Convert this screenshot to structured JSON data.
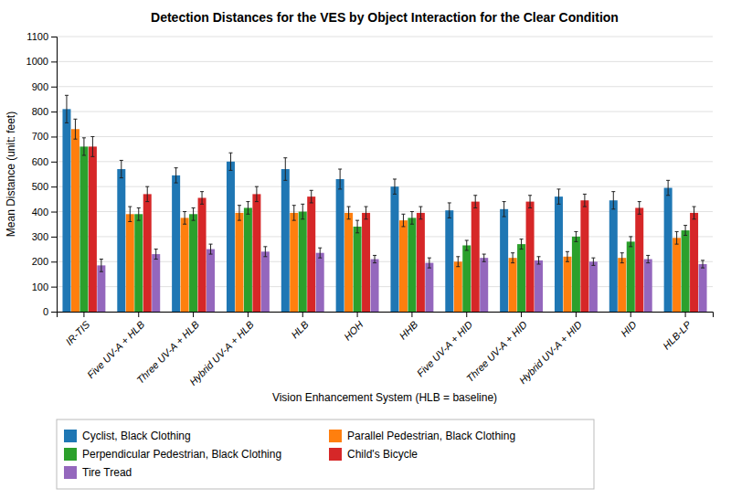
{
  "chart_data": {
    "type": "bar",
    "title": "Detection Distances for the VES by Object Interaction for the Clear Condition",
    "x_label": "Vision Enhancement System (HLB = baseline)",
    "y_label": "Mean Distance (unit: feet)",
    "categories": [
      "IR-TIS",
      "Five UV-A + HLB",
      "Three UV-A + HLB",
      "Hybrid UV-A + HLB",
      "HLB",
      "HOH",
      "HHB",
      "Five UV-A + HID",
      "Three UV-A + HID",
      "Hybrid UV-A + HID",
      "HID",
      "HLB-LP"
    ],
    "series": [
      {
        "name": "Cyclist, Black Clothing",
        "values": [
          810,
          570,
          545,
          600,
          570,
          530,
          500,
          405,
          410,
          460,
          445,
          495
        ],
        "errors": [
          55,
          35,
          30,
          35,
          45,
          40,
          30,
          30,
          30,
          30,
          35,
          30
        ]
      },
      {
        "name": "Parallel Pedestrian, Black Clothing",
        "values": [
          730,
          390,
          375,
          395,
          395,
          395,
          365,
          200,
          215,
          220,
          215,
          295
        ],
        "errors": [
          40,
          30,
          25,
          30,
          30,
          25,
          25,
          20,
          20,
          20,
          20,
          25
        ]
      },
      {
        "name": "Perpendicular Pedestrian, Black Clothing",
        "values": [
          660,
          390,
          390,
          415,
          400,
          340,
          375,
          265,
          270,
          300,
          280,
          325
        ],
        "errors": [
          35,
          25,
          25,
          25,
          30,
          25,
          25,
          20,
          20,
          20,
          20,
          20
        ]
      },
      {
        "name": "Child's Bicycle",
        "values": [
          660,
          470,
          455,
          470,
          460,
          395,
          395,
          440,
          440,
          445,
          415,
          395
        ],
        "errors": [
          40,
          30,
          25,
          30,
          25,
          25,
          25,
          25,
          25,
          25,
          25,
          25
        ]
      },
      {
        "name": "Tire Tread",
        "values": [
          185,
          230,
          250,
          240,
          235,
          210,
          195,
          215,
          205,
          200,
          210,
          190
        ],
        "errors": [
          25,
          20,
          20,
          20,
          20,
          15,
          20,
          15,
          15,
          15,
          15,
          15
        ]
      }
    ],
    "ylim": [
      0,
      1100
    ],
    "yticks": [
      0,
      100,
      200,
      300,
      400,
      500,
      600,
      700,
      800,
      900,
      1000,
      1100
    ],
    "grid": true,
    "legend": "bottom"
  }
}
